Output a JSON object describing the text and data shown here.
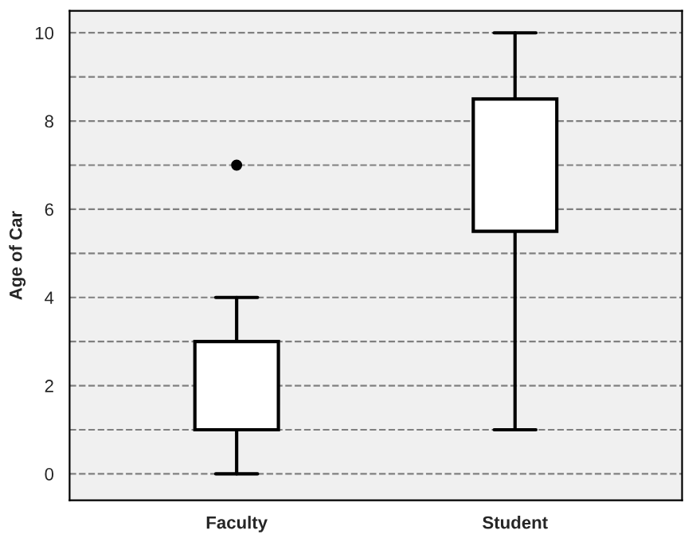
{
  "chart_data": {
    "type": "box",
    "ylabel": "Age of Car",
    "categories": [
      "Faculty",
      "Student"
    ],
    "boxes": [
      {
        "low": 0,
        "q1": 1,
        "median": 2,
        "q3": 3,
        "high": 4,
        "outliers": [
          7
        ]
      },
      {
        "low": 1,
        "q1": 5.5,
        "median": 6,
        "q3": 8.5,
        "high": 10
      }
    ],
    "ylim": [
      -0.6,
      10.5
    ],
    "yticks": [
      0,
      {
        "value": 1,
        "label": null
      },
      2,
      {
        "value": 3,
        "label": null
      },
      4,
      {
        "value": 5,
        "label": null
      },
      6,
      {
        "value": 7,
        "label": null
      },
      8,
      {
        "value": 9,
        "label": null
      },
      10
    ],
    "grid": "y",
    "color": "#ffffff"
  }
}
